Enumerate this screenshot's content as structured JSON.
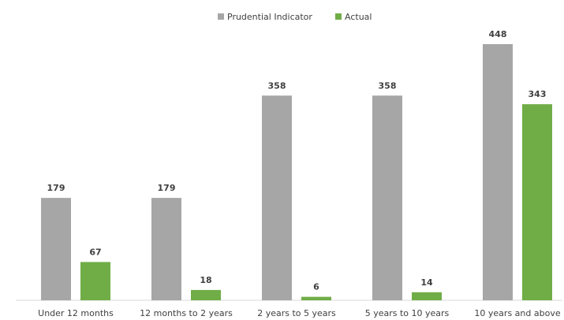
{
  "chart_data": {
    "type": "bar",
    "title": "",
    "xlabel": "",
    "ylabel": "",
    "categories": [
      "Under 12 months",
      "12 months to 2 years",
      "2 years to 5 years",
      "5 years to 10 years",
      "10 years and above"
    ],
    "series": [
      {
        "name": "Prudential Indicator",
        "color": "#a6a6a6",
        "values": [
          179,
          179,
          358,
          358,
          448
        ]
      },
      {
        "name": "Actual",
        "color": "#70ad47",
        "values": [
          67,
          18,
          6,
          14,
          343
        ]
      }
    ],
    "ylim": [
      0,
      448
    ],
    "grid": false,
    "legend_position": "top-center",
    "axis_color": "#d9d9d9"
  }
}
